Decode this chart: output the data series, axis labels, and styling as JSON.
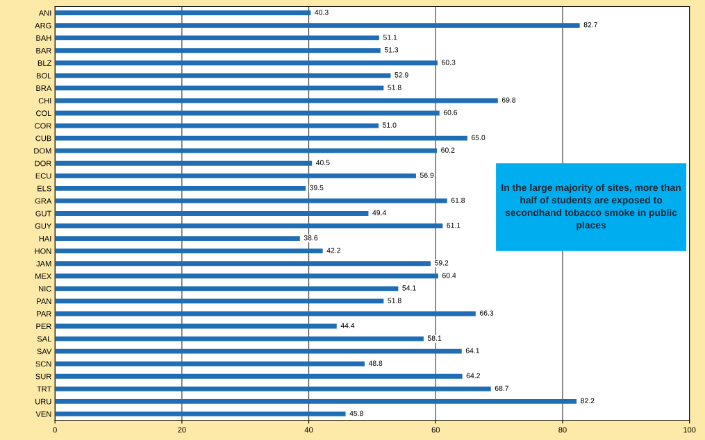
{
  "chart_data": {
    "type": "bar",
    "orientation": "horizontal",
    "categories": [
      "ANI",
      "ARG",
      "BAH",
      "BAR",
      "BLZ",
      "BOL",
      "BRA",
      "CHI",
      "COL",
      "COR",
      "CUB",
      "DOM",
      "DOR",
      "ECU",
      "ELS",
      "GRA",
      "GUT",
      "GUY",
      "HAI",
      "HON",
      "JAM",
      "MEX",
      "NIC",
      "PAN",
      "PAR",
      "PER",
      "SAL",
      "SAV",
      "SCN",
      "SUR",
      "TRT",
      "URU",
      "VEN"
    ],
    "values": [
      40.3,
      82.7,
      51.1,
      51.3,
      60.3,
      52.9,
      51.8,
      69.8,
      60.6,
      51.0,
      65.0,
      60.2,
      40.5,
      56.9,
      39.5,
      61.8,
      49.4,
      61.1,
      38.6,
      42.2,
      59.2,
      60.4,
      54.1,
      51.8,
      66.3,
      44.4,
      58.1,
      64.1,
      48.8,
      64.2,
      68.7,
      82.2,
      45.8
    ],
    "value_labels": [
      "40.3",
      "82.7",
      "51.1",
      "51.3",
      "60.3",
      "52.9",
      "51.8",
      "69.8",
      "60.6",
      "51.0",
      "65.0",
      "60.2",
      "40.5",
      "56.9",
      "39.5",
      "61.8",
      "49.4",
      "61.1",
      "38.6",
      "42.2",
      "59.2",
      "60.4",
      "54.1",
      "51.8",
      "66.3",
      "44.4",
      "58.1",
      "64.1",
      "48.8",
      "64.2",
      "68.7",
      "82.2",
      "45.8"
    ],
    "color": "#1f6db4",
    "xlim": [
      0,
      100
    ],
    "xticks": [
      0,
      20,
      40,
      60,
      80,
      100
    ],
    "grid": "x",
    "annotations": [
      "In the large majority of sites, more than half of students are exposed to secondhand tobacco smoke in public places"
    ]
  }
}
